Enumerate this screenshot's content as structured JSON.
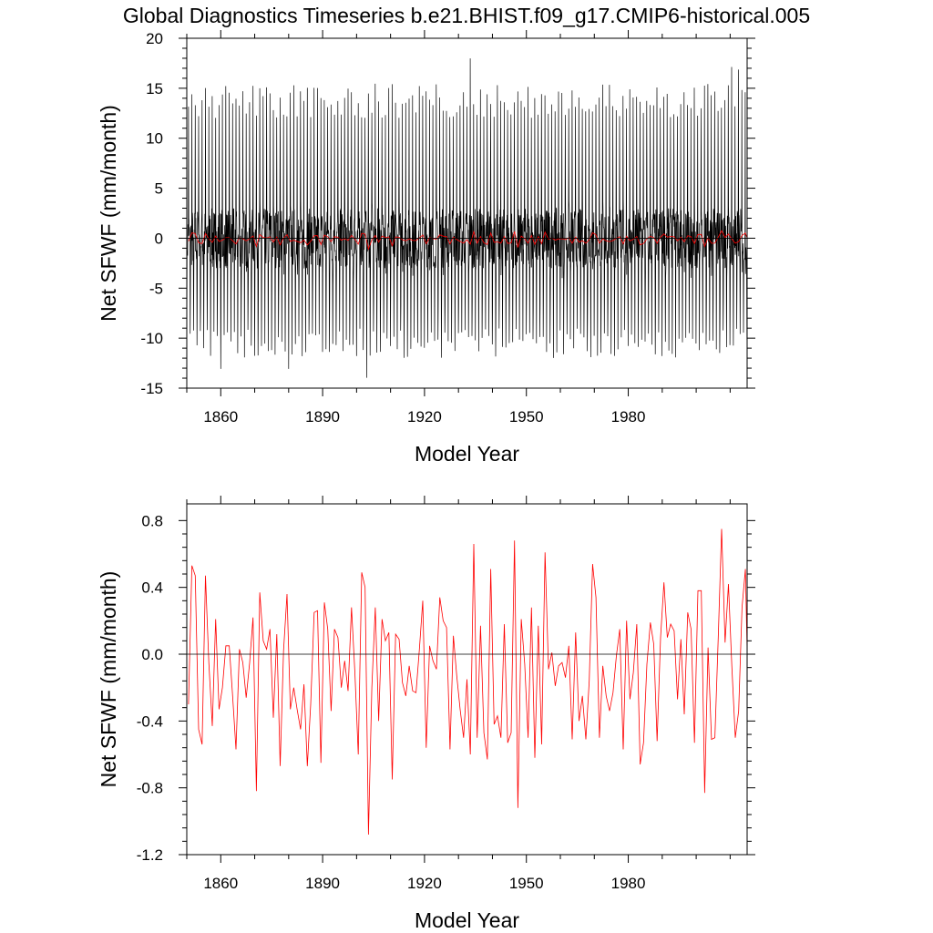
{
  "title": "Global Diagnostics Timeseries b.e21.BHIST.f09_g17.CMIP6-historical.005",
  "chart_data": [
    {
      "type": "line",
      "xlabel": "Model Year",
      "ylabel": "Net SFWF (mm/month)",
      "xlim": [
        1850,
        2015
      ],
      "ylim": [
        -15,
        20
      ],
      "x_ticks": [
        1860,
        1890,
        1920,
        1950,
        1980
      ],
      "x_tick_labels": [
        "1860",
        "1890",
        "1920",
        "1950",
        "1980"
      ],
      "y_ticks": [
        -15,
        -10,
        -5,
        0,
        5,
        10,
        15,
        20
      ],
      "y_tick_labels": [
        "-15",
        "-10",
        "-5",
        "0",
        "5",
        "10",
        "15",
        "20"
      ],
      "zero_line": 0,
      "series": [
        {
          "name": "monthly",
          "color": "#000000",
          "note": "monthly global mean net surface freshwater flux; strong seasonal cycle with peaks ~12-18 and troughs ~-8 to -14",
          "x_start": 1850,
          "x_end": 2015,
          "x_step": 0.0833,
          "typical_max": 13.5,
          "typical_min": -10.5,
          "peak_max": 18.2,
          "trough_min": -14.0
        },
        {
          "name": "annual mean",
          "color": "#ff0000",
          "note": "annual means, same as lower panel (plotted near zero)"
        }
      ]
    },
    {
      "type": "line",
      "xlabel": "Model Year",
      "ylabel": "Net SFWF (mm/month)",
      "xlim": [
        1850,
        2015
      ],
      "ylim": [
        -1.2,
        0.9
      ],
      "x_ticks": [
        1860,
        1890,
        1920,
        1950,
        1980
      ],
      "x_tick_labels": [
        "1860",
        "1890",
        "1920",
        "1950",
        "1980"
      ],
      "y_ticks": [
        -1.2,
        -0.8,
        -0.4,
        0.0,
        0.4,
        0.8
      ],
      "y_tick_labels": [
        "-1.2",
        "-0.8",
        "-0.4",
        "0.0",
        "0.4",
        "0.8"
      ],
      "zero_line": 0,
      "series": [
        {
          "name": "annual mean",
          "color": "#ff0000",
          "x_start": 1850,
          "x_step": 1,
          "values": [
            -0.3,
            0.53,
            0.47,
            -0.45,
            -0.54,
            0.47,
            -0.05,
            -0.43,
            0.21,
            -0.33,
            -0.2,
            0.05,
            0.05,
            -0.25,
            -0.57,
            0.03,
            -0.05,
            -0.26,
            -0.05,
            0.22,
            -0.82,
            0.37,
            0.08,
            0.03,
            0.15,
            -0.38,
            0.12,
            -0.67,
            0.02,
            0.36,
            -0.33,
            -0.2,
            -0.33,
            -0.45,
            -0.18,
            -0.67,
            -0.3,
            0.25,
            0.26,
            -0.65,
            0.31,
            0.15,
            -0.34,
            0.15,
            0.1,
            -0.2,
            -0.04,
            -0.22,
            0.28,
            -0.11,
            -0.6,
            0.49,
            0.4,
            -1.08,
            -0.2,
            0.28,
            -0.4,
            0.21,
            0.08,
            0.13,
            -0.75,
            0.12,
            0.09,
            -0.17,
            -0.25,
            -0.07,
            -0.22,
            -0.23,
            0.03,
            0.32,
            -0.56,
            0.05,
            -0.04,
            -0.09,
            0.34,
            0.2,
            0.16,
            -0.57,
            0.11,
            -0.13,
            -0.33,
            -0.5,
            -0.15,
            -0.6,
            0.66,
            -0.5,
            0.17,
            -0.47,
            -0.63,
            0.51,
            -0.42,
            -0.37,
            -0.5,
            0.18,
            -0.53,
            -0.47,
            0.68,
            -0.92,
            0.21,
            -0.06,
            -0.5,
            0.28,
            -0.62,
            0.17,
            -0.54,
            0.61,
            -0.09,
            0.01,
            -0.19,
            -0.07,
            -0.05,
            -0.14,
            0.05,
            -0.51,
            0.13,
            -0.4,
            -0.25,
            -0.51,
            -0.16,
            0.54,
            0.34,
            -0.5,
            -0.07,
            -0.25,
            -0.34,
            -0.23,
            -0.01,
            0.15,
            -0.57,
            0.2,
            -0.27,
            -0.11,
            0.18,
            -0.66,
            -0.53,
            -0.06,
            0.19,
            0.06,
            -0.52,
            0.1,
            0.43,
            0.1,
            0.18,
            0.14,
            -0.27,
            0.09,
            -0.36,
            0.25,
            0.15,
            -0.53,
            0.38,
            0.38,
            -0.83,
            0.04,
            -0.51,
            -0.5,
            0.1,
            0.75,
            0.07,
            0.42,
            -0.07,
            -0.5,
            -0.34,
            0.28,
            0.51,
            -0.47,
            -0.55,
            0.04,
            -0.4,
            0.15,
            0.3,
            0.25
          ]
        }
      ]
    }
  ]
}
